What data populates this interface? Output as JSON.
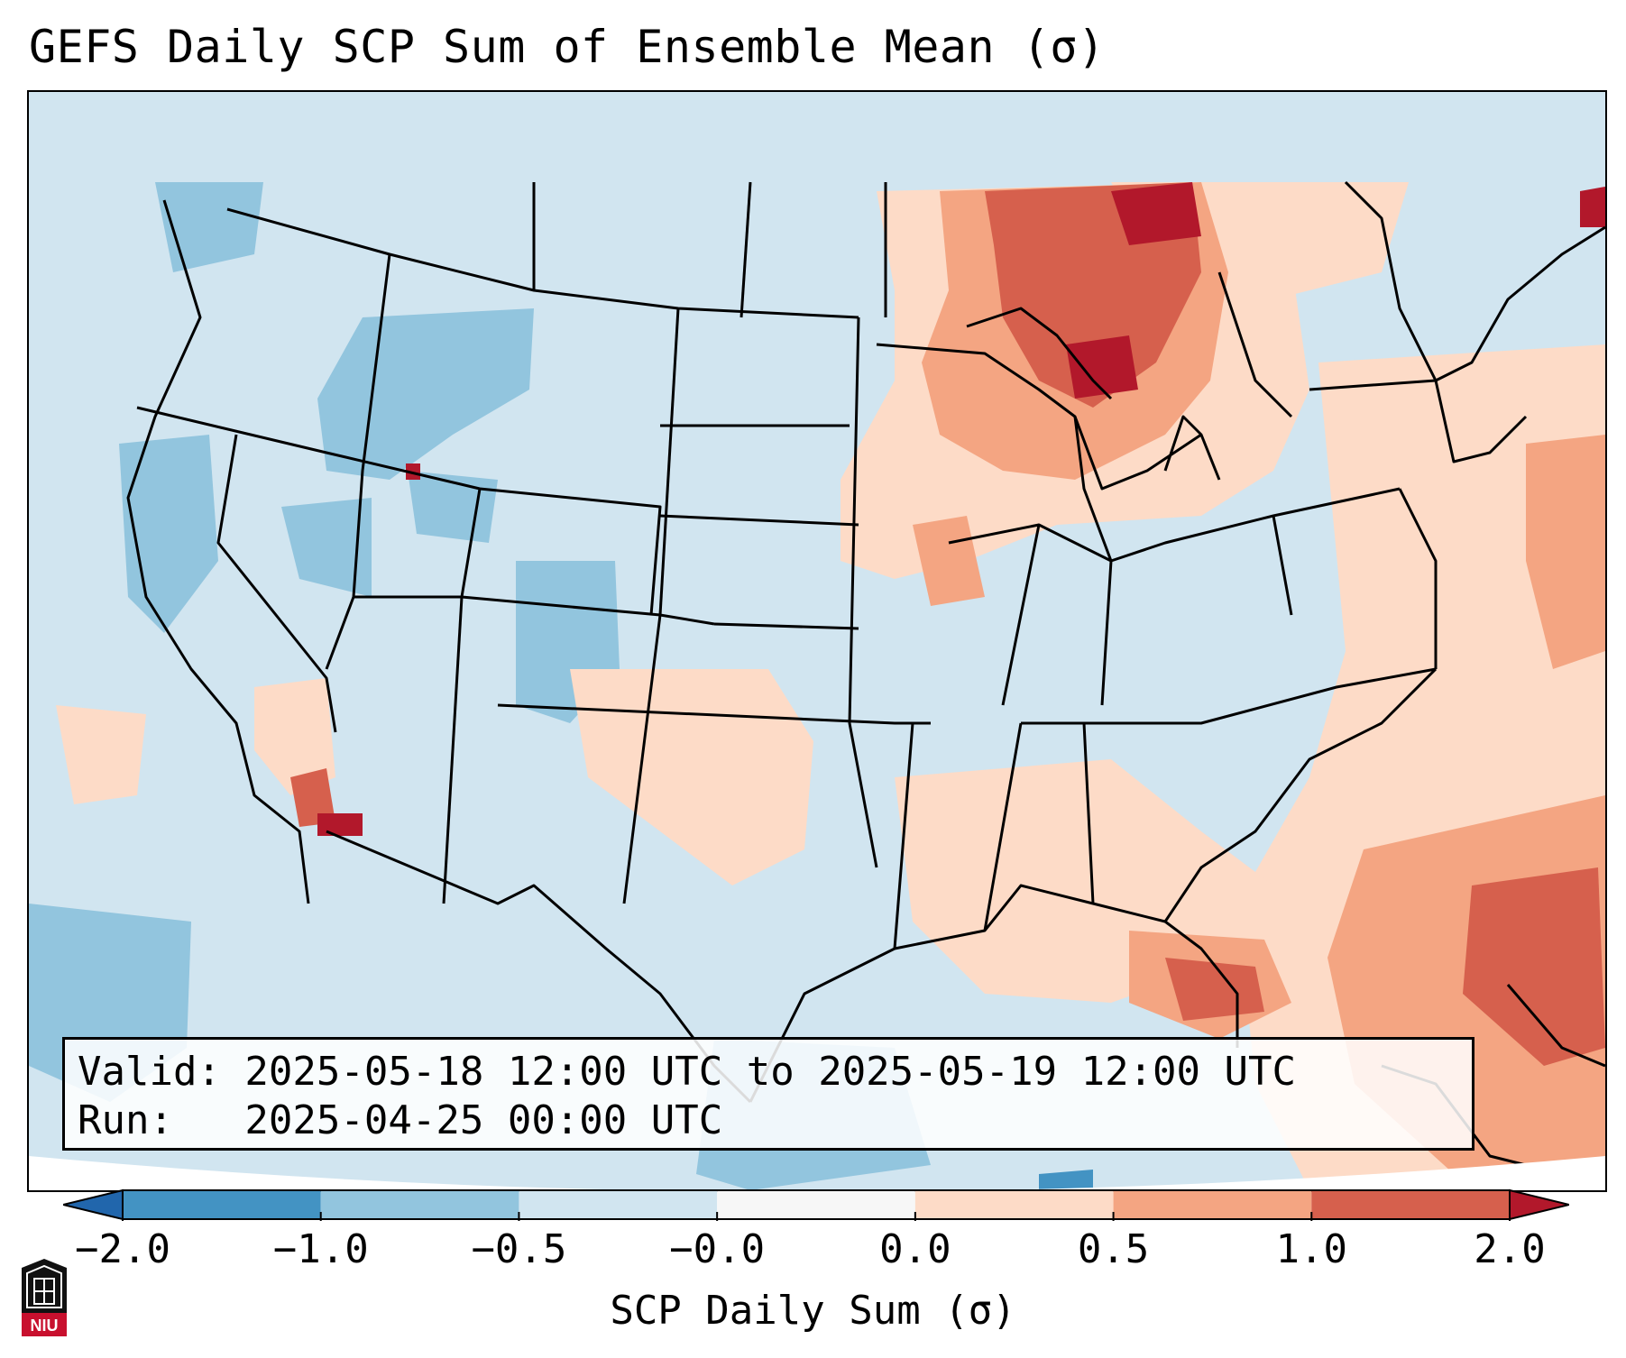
{
  "title": "GEFS Daily SCP Sum of Ensemble Mean (σ)",
  "info_box": {
    "valid_line": "Valid: 2025-05-18 12:00 UTC to 2025-05-19 12:00 UTC",
    "run_line": "Run:   2025-04-25 00:00 UTC"
  },
  "colorbar": {
    "label": "SCP Daily Sum (σ)",
    "ticks": [
      "−2.0",
      "−1.0",
      "−0.5",
      "−0.0",
      "0.0",
      "0.5",
      "1.0",
      "2.0"
    ],
    "bins": [
      {
        "range": "< -2.0",
        "color": "#2166ac"
      },
      {
        "range": "-2.0 to -1.0",
        "color": "#4393c3"
      },
      {
        "range": "-1.0 to -0.5",
        "color": "#92c5de"
      },
      {
        "range": "-0.5 to -0.0",
        "color": "#d1e5f0"
      },
      {
        "range": "-0.0 to 0.0",
        "color": "#f7f7f7"
      },
      {
        "range": "0.0 to 0.5",
        "color": "#fddbc7"
      },
      {
        "range": "0.5 to 1.0",
        "color": "#f4a582"
      },
      {
        "range": "1.0 to 2.0",
        "color": "#d6604d"
      },
      {
        "range": "> 2.0",
        "color": "#b2182b"
      }
    ]
  },
  "logo_text": "NIU",
  "icons": {
    "logo": "niu-logo-icon"
  }
}
